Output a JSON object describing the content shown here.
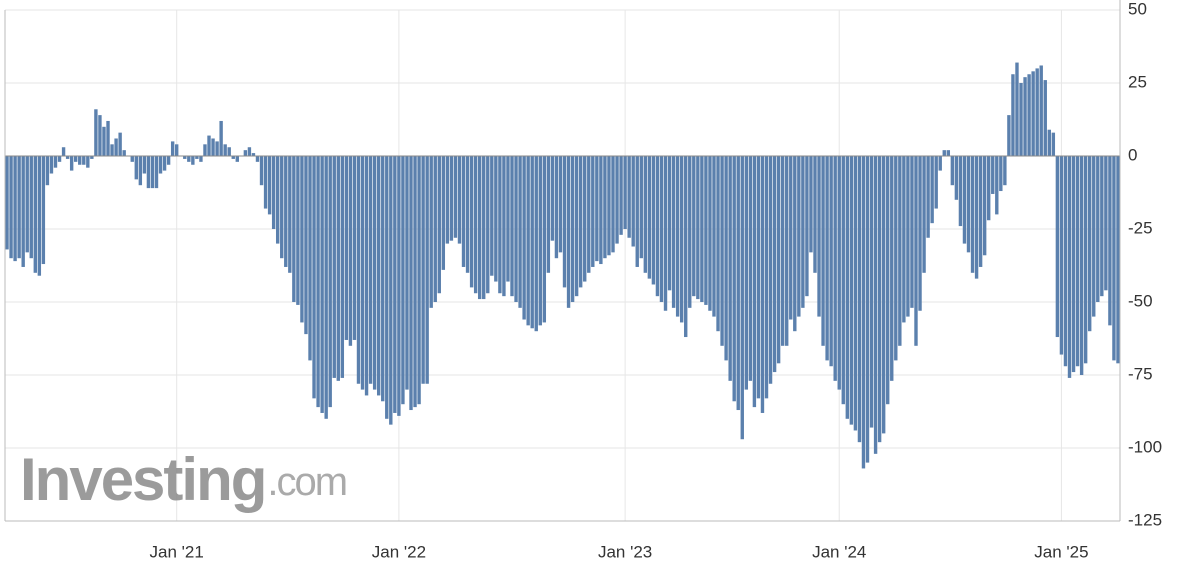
{
  "chart_data": {
    "type": "bar",
    "watermark": {
      "brand": "Investing",
      "suffix": ".com"
    },
    "categories": [
      null,
      null,
      null,
      null,
      null,
      null,
      null,
      null,
      null,
      null,
      null,
      null,
      null,
      null,
      null,
      null,
      null,
      null,
      null,
      null,
      null,
      null,
      null,
      null,
      null,
      null,
      null,
      null,
      null,
      null,
      null,
      null,
      null,
      null,
      null,
      null,
      null,
      null,
      null,
      null,
      null,
      null,
      "Jan '21",
      null,
      null,
      null,
      null,
      null,
      null,
      null,
      null,
      null,
      null,
      null,
      null,
      null,
      null,
      null,
      null,
      null,
      null,
      null,
      null,
      null,
      null,
      null,
      null,
      null,
      null,
      null,
      null,
      null,
      null,
      null,
      null,
      null,
      null,
      null,
      null,
      null,
      null,
      null,
      null,
      null,
      null,
      null,
      null,
      null,
      null,
      null,
      null,
      null,
      null,
      null,
      null,
      null,
      null,
      "Jan '22",
      null,
      null,
      null,
      null,
      null,
      null,
      null,
      null,
      null,
      null,
      null,
      null,
      null,
      null,
      null,
      null,
      null,
      null,
      null,
      null,
      null,
      null,
      null,
      null,
      null,
      null,
      null,
      null,
      null,
      null,
      null,
      null,
      null,
      null,
      null,
      null,
      null,
      null,
      null,
      null,
      null,
      null,
      null,
      null,
      null,
      null,
      null,
      null,
      null,
      null,
      null,
      null,
      null,
      null,
      null,
      "Jan '23",
      null,
      null,
      null,
      null,
      null,
      null,
      null,
      null,
      null,
      null,
      null,
      null,
      null,
      null,
      null,
      null,
      null,
      null,
      null,
      null,
      null,
      null,
      null,
      null,
      null,
      null,
      null,
      null,
      null,
      null,
      null,
      null,
      null,
      null,
      null,
      null,
      null,
      null,
      null,
      null,
      null,
      null,
      null,
      null,
      null,
      null,
      null,
      null,
      null,
      null,
      null,
      null,
      "Jan '24",
      null,
      null,
      null,
      null,
      null,
      null,
      null,
      null,
      null,
      null,
      null,
      null,
      null,
      null,
      null,
      null,
      null,
      null,
      null,
      null,
      null,
      null,
      null,
      null,
      null,
      null,
      null,
      null,
      null,
      null,
      null,
      null,
      null,
      null,
      null,
      null,
      null,
      null,
      null,
      null,
      null,
      null,
      null,
      null,
      null,
      null,
      null,
      null,
      null,
      null,
      null,
      null,
      null,
      null,
      "Jan '25",
      null,
      null,
      null,
      null,
      null,
      null,
      null,
      null,
      null,
      null,
      null,
      null,
      null,
      null
    ],
    "values": [
      -32,
      -35,
      -36,
      -35,
      -38,
      -33,
      -35,
      -40,
      -41,
      -37,
      -10,
      -6,
      -4,
      -2,
      3,
      -1,
      -5,
      -2,
      -3,
      -3,
      -4,
      -1,
      16,
      14,
      10,
      12,
      4,
      6,
      8,
      2,
      0,
      -2,
      -8,
      -10,
      -6,
      -11,
      -11,
      -11,
      -6,
      -5,
      -3,
      5,
      4,
      0,
      -1,
      -2,
      -3,
      -1,
      -2,
      4,
      7,
      6,
      5,
      12,
      4,
      3,
      -1,
      -2,
      0,
      2,
      3,
      1,
      -2,
      -10,
      -18,
      -20,
      -25,
      -30,
      -35,
      -38,
      -40,
      -50,
      -51,
      -57,
      -61,
      -70,
      -83,
      -86,
      -88,
      -90,
      -86,
      -76,
      -77,
      -76,
      -63,
      -65,
      -63,
      -78,
      -80,
      -82,
      -78,
      -80,
      -82,
      -84,
      -90,
      -92,
      -88,
      -89,
      -85,
      -80,
      -87,
      -86,
      -85,
      -78,
      -78,
      -52,
      -50,
      -47,
      -39,
      -30,
      -29,
      -28,
      -30,
      -38,
      -40,
      -45,
      -47,
      -49,
      -49,
      -47,
      -41,
      -43,
      -47,
      -48,
      -43,
      -48,
      -50,
      -52,
      -56,
      -58,
      -59,
      -60,
      -58,
      -57,
      -40,
      -29,
      -35,
      -33,
      -45,
      -52,
      -50,
      -48,
      -45,
      -43,
      -40,
      -38,
      -36,
      -37,
      -35,
      -34,
      -33,
      -30,
      -27,
      -25,
      -28,
      -31,
      -38,
      -35,
      -40,
      -42,
      -44,
      -48,
      -50,
      -53,
      -46,
      -52,
      -55,
      -57,
      -62,
      -52,
      -48,
      -49,
      -50,
      -51,
      -53,
      -55,
      -60,
      -65,
      -70,
      -77,
      -84,
      -87,
      -97,
      -80,
      -77,
      -86,
      -83,
      -88,
      -83,
      -78,
      -74,
      -71,
      -65,
      -65,
      -56,
      -60,
      -55,
      -52,
      -48,
      -33,
      -40,
      -55,
      -65,
      -70,
      -72,
      -77,
      -80,
      -85,
      -90,
      -92,
      -94,
      -98,
      -107,
      -105,
      -93,
      -102,
      -98,
      -95,
      -85,
      -77,
      -70,
      -65,
      -57,
      -55,
      -52,
      -65,
      -53,
      -40,
      -28,
      -23,
      -18,
      -5,
      2,
      2,
      -10,
      -15,
      -24,
      -30,
      -33,
      -40,
      -42,
      -38,
      -34,
      -22,
      -13,
      -20,
      -12,
      -10,
      14,
      28,
      32,
      25,
      27,
      28,
      29,
      30,
      31,
      26,
      9,
      8,
      -62,
      -68,
      -72,
      -76,
      -74,
      -72,
      -75,
      -71,
      -60,
      -55,
      -50,
      -48,
      -46,
      -58,
      -70,
      -71
    ],
    "color": "#5b80ad",
    "ylim": [
      -125,
      50
    ],
    "yticks": [
      -125,
      -100,
      -75,
      -50,
      -25,
      0,
      25,
      50
    ],
    "grid": true
  }
}
